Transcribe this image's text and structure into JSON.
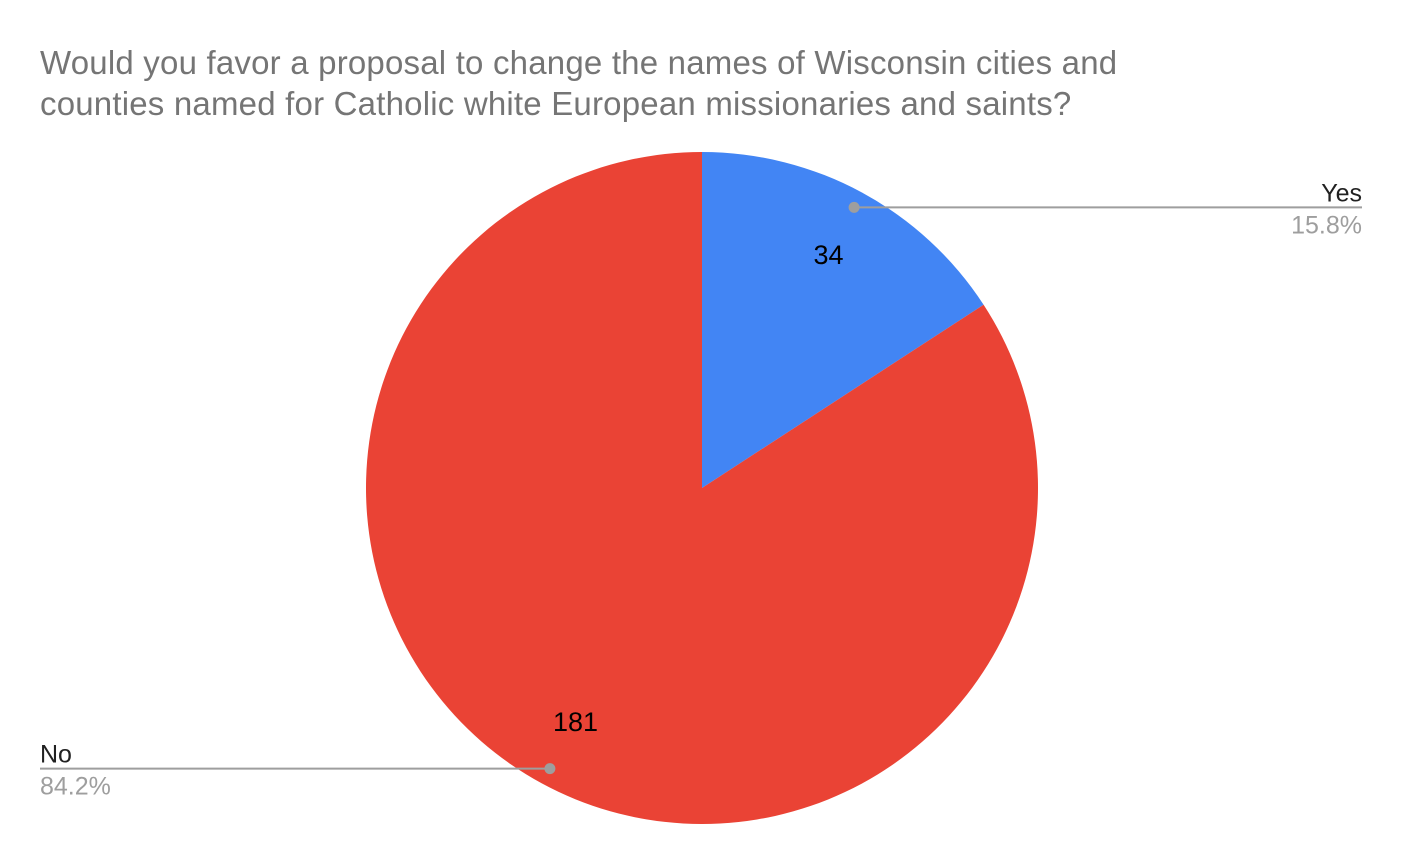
{
  "title_lines": [
    "Would you favor a proposal to change the names of Wisconsin cities and",
    "counties named for Catholic white European missionaries and saints?"
  ],
  "chart_data": {
    "type": "pie",
    "title": "Would you favor a proposal to change the names of Wisconsin cities and counties named for Catholic white European missionaries and saints?",
    "categories": [
      "Yes",
      "No"
    ],
    "values": [
      34,
      181
    ],
    "total": 215,
    "percent_labels": [
      "15.8%",
      "84.2%"
    ],
    "slice_colors": [
      "#4285f4",
      "#ea4335"
    ],
    "start_angle_deg": 0,
    "direction": "clockwise",
    "label_layout": "value inside slice, category and percent as outside callouts with leader lines",
    "legend_position": "none",
    "colors": {
      "background": "#ffffff",
      "title_text": "#757575",
      "value_label_text": "#000000",
      "callout_name_text": "#212121",
      "callout_percent_text": "#9e9e9e",
      "leader_line": "#9e9e9e",
      "leader_dot": "#9e9e9e"
    }
  }
}
